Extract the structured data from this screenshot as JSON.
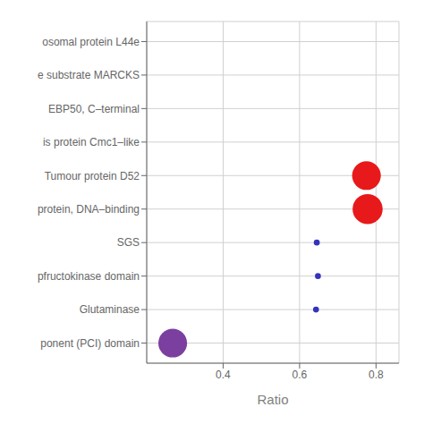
{
  "chart_data": {
    "type": "scatter",
    "categories": [
      "osomal protein L44e",
      "e substrate MARCKS",
      "EBP50, C–terminal",
      "is protein Cmc1–like",
      "Tumour protein D52",
      "protein, DNA–binding",
      "SGS",
      "pfructokinase domain",
      "Glutaminase",
      "ponent (PCI) domain"
    ],
    "values": [
      null,
      null,
      null,
      null,
      0.775,
      0.778,
      0.645,
      0.648,
      0.643,
      0.268
    ],
    "sizes": [
      0,
      0,
      0,
      0,
      420,
      460,
      18,
      18,
      18,
      420
    ],
    "colors": [
      "#cccccc",
      "#cccccc",
      "#cccccc",
      "#cccccc",
      "#e8191a",
      "#e8191a",
      "#3333bb",
      "#3333bb",
      "#3333bb",
      "#7b3fa0"
    ],
    "xlabel": "Ratio",
    "xlim": [
      0.2,
      0.86
    ],
    "xticks": [
      0.4,
      0.6,
      0.8
    ],
    "grid": true
  }
}
